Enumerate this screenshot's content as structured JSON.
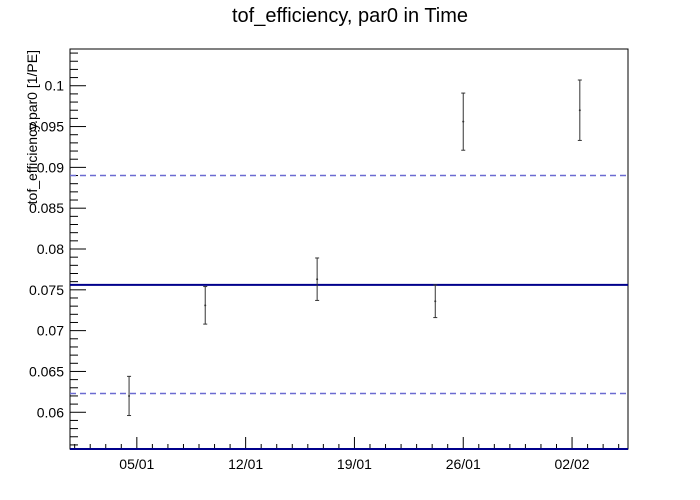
{
  "chart_data": {
    "type": "scatter",
    "title": "tof_efficiency, par0 in Time",
    "ylabel": "tof_efficiency.par0 [1/PE]",
    "xlabel": "",
    "ylim": [
      0.0555,
      0.1045
    ],
    "y_ticks": [
      "0.06",
      "0.065",
      "0.07",
      "0.075",
      "0.08",
      "0.085",
      "0.09",
      "0.095",
      "0.1"
    ],
    "x_ticks": [
      "05/01",
      "12/01",
      "19/01",
      "26/01",
      "02/02"
    ],
    "x_tick_values": [
      5,
      12,
      19,
      26,
      33
    ],
    "xlim": [
      0.7,
      36.6
    ],
    "grid": false,
    "series": [
      {
        "x": [
          4.5,
          9.4,
          16.6,
          24.2,
          26.0,
          33.5
        ],
        "y": [
          0.062,
          0.0731,
          0.0763,
          0.0736,
          0.0956,
          0.097
        ],
        "err": [
          0.0024,
          0.0023,
          0.0026,
          0.002,
          0.0035,
          0.0037
        ]
      }
    ],
    "reference_lines": {
      "mean": 0.0756,
      "upper": 0.089,
      "lower": 0.0623,
      "mean_color": "#00008b",
      "band_color": "#6b6bd1"
    }
  }
}
